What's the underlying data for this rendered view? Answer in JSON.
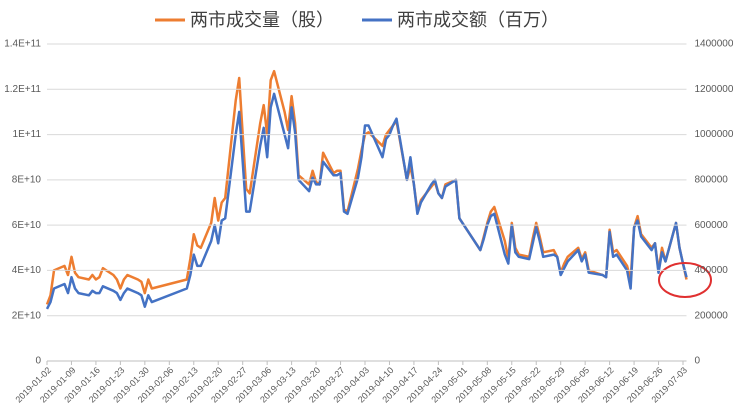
{
  "chart_data": {
    "type": "line",
    "x": [
      "2019-01-02",
      "2019-01-03",
      "2019-01-04",
      "2019-01-07",
      "2019-01-08",
      "2019-01-09",
      "2019-01-10",
      "2019-01-11",
      "2019-01-14",
      "2019-01-15",
      "2019-01-16",
      "2019-01-17",
      "2019-01-18",
      "2019-01-21",
      "2019-01-22",
      "2019-01-23",
      "2019-01-24",
      "2019-01-25",
      "2019-01-28",
      "2019-01-29",
      "2019-01-30",
      "2019-01-31",
      "2019-02-01",
      "2019-02-11",
      "2019-02-12",
      "2019-02-13",
      "2019-02-14",
      "2019-02-15",
      "2019-02-18",
      "2019-02-19",
      "2019-02-20",
      "2019-02-21",
      "2019-02-22",
      "2019-02-25",
      "2019-02-26",
      "2019-02-27",
      "2019-02-28",
      "2019-03-01",
      "2019-03-04",
      "2019-03-05",
      "2019-03-06",
      "2019-03-07",
      "2019-03-08",
      "2019-03-11",
      "2019-03-12",
      "2019-03-13",
      "2019-03-14",
      "2019-03-15",
      "2019-03-18",
      "2019-03-19",
      "2019-03-20",
      "2019-03-21",
      "2019-03-22",
      "2019-03-25",
      "2019-03-26",
      "2019-03-27",
      "2019-03-28",
      "2019-03-29",
      "2019-04-01",
      "2019-04-02",
      "2019-04-03",
      "2019-04-04",
      "2019-04-08",
      "2019-04-09",
      "2019-04-10",
      "2019-04-11",
      "2019-04-12",
      "2019-04-15",
      "2019-04-16",
      "2019-04-17",
      "2019-04-18",
      "2019-04-19",
      "2019-04-22",
      "2019-04-23",
      "2019-04-24",
      "2019-04-25",
      "2019-04-26",
      "2019-04-29",
      "2019-04-30",
      "2019-05-06",
      "2019-05-07",
      "2019-05-08",
      "2019-05-09",
      "2019-05-10",
      "2019-05-13",
      "2019-05-14",
      "2019-05-15",
      "2019-05-16",
      "2019-05-17",
      "2019-05-20",
      "2019-05-21",
      "2019-05-22",
      "2019-05-23",
      "2019-05-24",
      "2019-05-27",
      "2019-05-28",
      "2019-05-29",
      "2019-05-30",
      "2019-05-31",
      "2019-06-03",
      "2019-06-04",
      "2019-06-05",
      "2019-06-06",
      "2019-06-10",
      "2019-06-11",
      "2019-06-12",
      "2019-06-13",
      "2019-06-14",
      "2019-06-17",
      "2019-06-18",
      "2019-06-19",
      "2019-06-20",
      "2019-06-21",
      "2019-06-24",
      "2019-06-25",
      "2019-06-26",
      "2019-06-27",
      "2019-06-28",
      "2019-07-01",
      "2019-07-02",
      "2019-07-03",
      "2019-07-04"
    ],
    "series": [
      {
        "name": "两市成交量（股）",
        "color": "#ed7d31",
        "values": [
          25000000000.0,
          29000000000.0,
          40000000000.0,
          42000000000.0,
          38000000000.0,
          46000000000.0,
          39000000000.0,
          37000000000.0,
          36000000000.0,
          38000000000.0,
          36000000000.0,
          37000000000.0,
          41000000000.0,
          38000000000.0,
          36000000000.0,
          32000000000.0,
          36000000000.0,
          38000000000.0,
          36000000000.0,
          35000000000.0,
          30000000000.0,
          36000000000.0,
          32000000000.0,
          36000000000.0,
          45000000000.0,
          56000000000.0,
          51000000000.0,
          50000000000.0,
          61000000000.0,
          72000000000.0,
          62000000000.0,
          70000000000.0,
          72000000000.0,
          115000000000.0,
          125000000000.0,
          100000000000.0,
          76000000000.0,
          74000000000.0,
          105000000000.0,
          113000000000.0,
          100000000000.0,
          124000000000.0,
          128000000000.0,
          110000000000.0,
          102000000000.0,
          117000000000.0,
          105000000000.0,
          82000000000.0,
          78000000000.0,
          84000000000.0,
          79000000000.0,
          78000000000.0,
          92000000000.0,
          83000000000.0,
          84000000000.0,
          84000000000.0,
          67000000000.0,
          66000000000.0,
          85000000000.0,
          93000000000.0,
          100000000000.0,
          101000000000.0,
          95000000000.0,
          100000000000.0,
          102000000000.0,
          104000000000.0,
          106000000000.0,
          80000000000.0,
          86000000000.0,
          78000000000.0,
          66000000000.0,
          71000000000.0,
          77000000000.0,
          79000000000.0,
          74000000000.0,
          72000000000.0,
          78000000000.0,
          80000000000.0,
          63000000000.0,
          49000000000.0,
          55000000000.0,
          61000000000.0,
          66000000000.0,
          68000000000.0,
          53000000000.0,
          45000000000.0,
          61000000000.0,
          50000000000.0,
          47000000000.0,
          46000000000.0,
          54000000000.0,
          61000000000.0,
          55000000000.0,
          48000000000.0,
          49000000000.0,
          46000000000.0,
          39000000000.0,
          43000000000.0,
          46000000000.0,
          50000000000.0,
          45000000000.0,
          48000000000.0,
          40000000000.0,
          38000000000.0,
          37000000000.0,
          58000000000.0,
          48000000000.0,
          49000000000.0,
          42000000000.0,
          36000000000.0,
          59000000000.0,
          64000000000.0,
          56000000000.0,
          50000000000.0,
          52000000000.0,
          40000000000.0,
          50000000000.0,
          44000000000.0,
          61000000000.0,
          50000000000.0,
          43000000000.0,
          36000000000.0
        ]
      },
      {
        "name": "两市成交额（百万）",
        "color": "#4472c4",
        "axis": "y2",
        "values": [
          230000,
          260000,
          320000,
          340000,
          300000,
          370000,
          320000,
          300000,
          290000,
          310000,
          300000,
          300000,
          330000,
          310000,
          300000,
          270000,
          300000,
          320000,
          300000,
          290000,
          240000,
          290000,
          260000,
          320000,
          380000,
          470000,
          420000,
          420000,
          530000,
          600000,
          520000,
          620000,
          630000,
          1000000,
          1100000,
          880000,
          660000,
          660000,
          950000,
          1030000,
          900000,
          1120000,
          1180000,
          1000000,
          940000,
          1120000,
          1010000,
          800000,
          750000,
          810000,
          780000,
          780000,
          880000,
          820000,
          820000,
          830000,
          660000,
          650000,
          810000,
          900000,
          1040000,
          1040000,
          900000,
          980000,
          1000000,
          1040000,
          1070000,
          800000,
          900000,
          780000,
          650000,
          700000,
          780000,
          800000,
          740000,
          720000,
          770000,
          800000,
          630000,
          490000,
          540000,
          600000,
          640000,
          650000,
          470000,
          430000,
          600000,
          480000,
          460000,
          450000,
          520000,
          590000,
          530000,
          460000,
          470000,
          460000,
          380000,
          410000,
          440000,
          490000,
          440000,
          470000,
          390000,
          380000,
          370000,
          570000,
          460000,
          470000,
          400000,
          320000,
          590000,
          620000,
          550000,
          490000,
          520000,
          390000,
          480000,
          440000,
          610000,
          500000,
          430000,
          370000
        ]
      }
    ],
    "xlim": [
      "2019-01-02",
      "2019-07-04"
    ],
    "xticks": [
      "2019-01-02",
      "2019-01-09",
      "2019-01-16",
      "2019-01-23",
      "2019-01-30",
      "2019-02-06",
      "2019-02-13",
      "2019-02-20",
      "2019-02-27",
      "2019-03-06",
      "2019-03-13",
      "2019-03-20",
      "2019-03-27",
      "2019-04-03",
      "2019-04-10",
      "2019-04-17",
      "2019-04-24",
      "2019-05-01",
      "2019-05-08",
      "2019-05-15",
      "2019-05-22",
      "2019-05-29",
      "2019-06-05",
      "2019-06-12",
      "2019-06-19",
      "2019-06-26",
      "2019-07-03"
    ],
    "ylim": [
      0,
      140000000000.0
    ],
    "yticks": [
      0,
      {
        "value": 20000000000.0,
        "label": "2E+10"
      },
      {
        "value": 40000000000.0,
        "label": "4E+10"
      },
      {
        "value": 60000000000.0,
        "label": "6E+10"
      },
      {
        "value": 80000000000.0,
        "label": "8E+10"
      },
      {
        "value": 100000000000.0,
        "label": "1E+11"
      },
      {
        "value": 120000000000.0,
        "label": "1.2E+11"
      },
      {
        "value": 140000000000.0,
        "label": "1.4E+11"
      }
    ],
    "y2lim": [
      0,
      1400000
    ],
    "y2ticks": [
      0,
      200000,
      400000,
      600000,
      800000,
      1000000,
      1200000,
      1400000
    ],
    "grid": true
  }
}
